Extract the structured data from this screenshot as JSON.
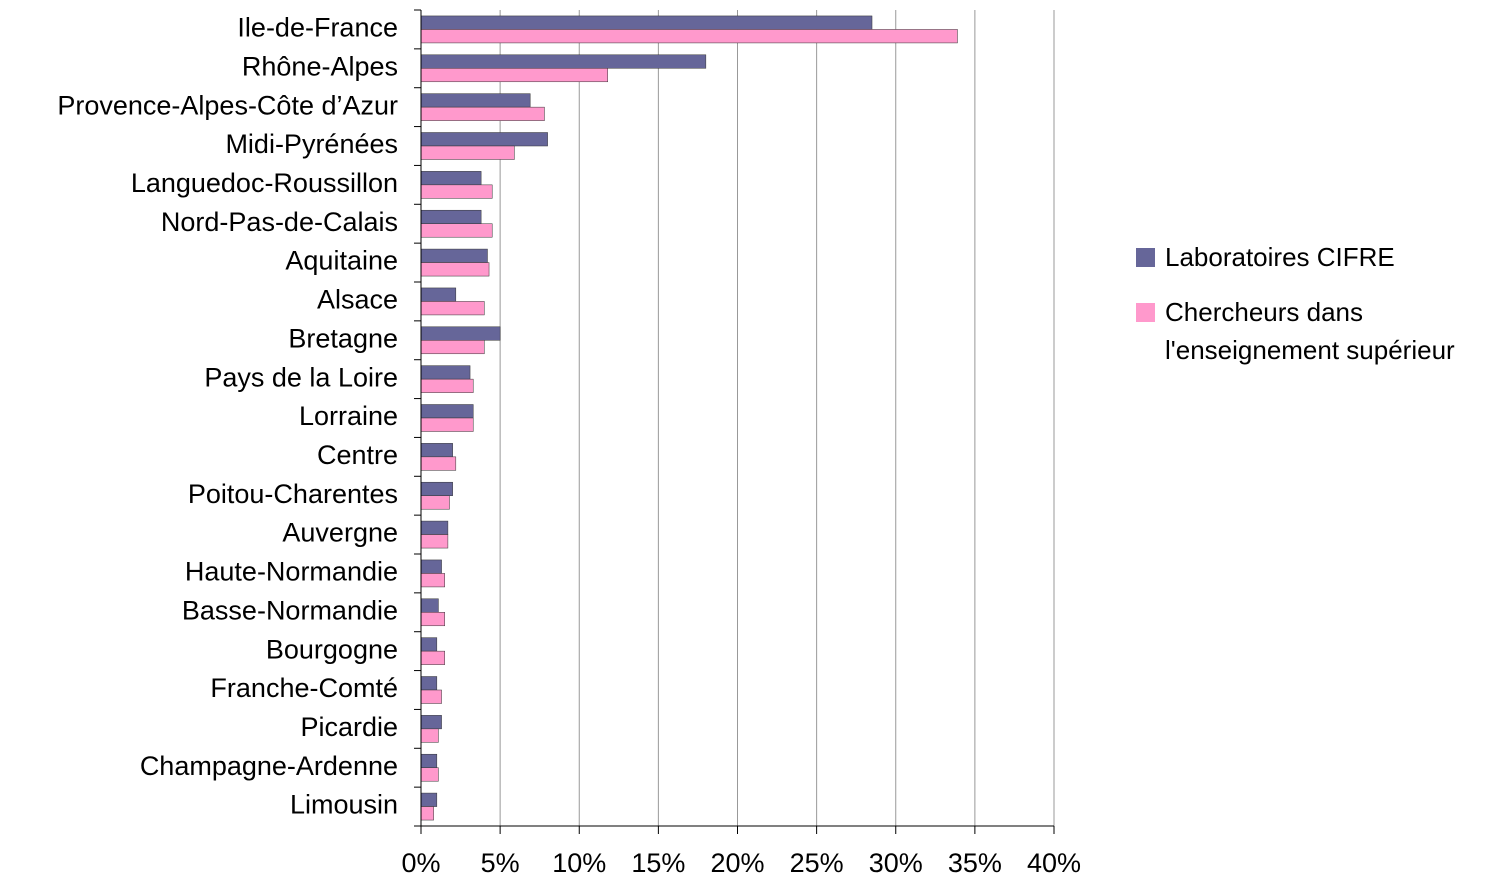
{
  "chart_data": {
    "type": "barh",
    "categories": [
      "Ile-de-France",
      "Rhône-Alpes",
      "Provence-Alpes-Côte d’Azur",
      "Midi-Pyrénées",
      "Languedoc-Roussillon",
      "Nord-Pas-de-Calais",
      "Aquitaine",
      "Alsace",
      "Bretagne",
      "Pays de la Loire",
      "Lorraine",
      "Centre",
      "Poitou-Charentes",
      "Auvergne",
      "Haute-Normandie",
      "Basse-Normandie",
      "Bourgogne",
      "Franche-Comté",
      "Picardie",
      "Champagne-Ardenne",
      "Limousin"
    ],
    "series": [
      {
        "name": "Laboratoires CIFRE",
        "color": "#666699",
        "values": [
          28.5,
          18.0,
          6.9,
          8.0,
          3.8,
          3.8,
          4.2,
          2.2,
          5.0,
          3.1,
          3.3,
          2.0,
          2.0,
          1.7,
          1.3,
          1.1,
          1.0,
          1.0,
          1.3,
          1.0,
          1.0
        ]
      },
      {
        "name": "Chercheurs dans l'enseignement supérieur",
        "color": "#ff99cc",
        "values": [
          33.9,
          11.8,
          7.8,
          5.9,
          4.5,
          4.5,
          4.3,
          4.0,
          4.0,
          3.3,
          3.3,
          2.2,
          1.8,
          1.7,
          1.5,
          1.5,
          1.5,
          1.3,
          1.1,
          1.1,
          0.8
        ]
      }
    ],
    "xlim": [
      0,
      40
    ],
    "xticks": [
      {
        "value": 0,
        "label": "0%"
      },
      {
        "value": 5,
        "label": "5%"
      },
      {
        "value": 10,
        "label": "10%"
      },
      {
        "value": 15,
        "label": "15%"
      },
      {
        "value": 20,
        "label": "20%"
      },
      {
        "value": 25,
        "label": "25%"
      },
      {
        "value": 30,
        "label": "30%"
      },
      {
        "value": 35,
        "label": "35%"
      },
      {
        "value": 40,
        "label": "40%"
      }
    ],
    "grid": true,
    "legend": "right"
  }
}
